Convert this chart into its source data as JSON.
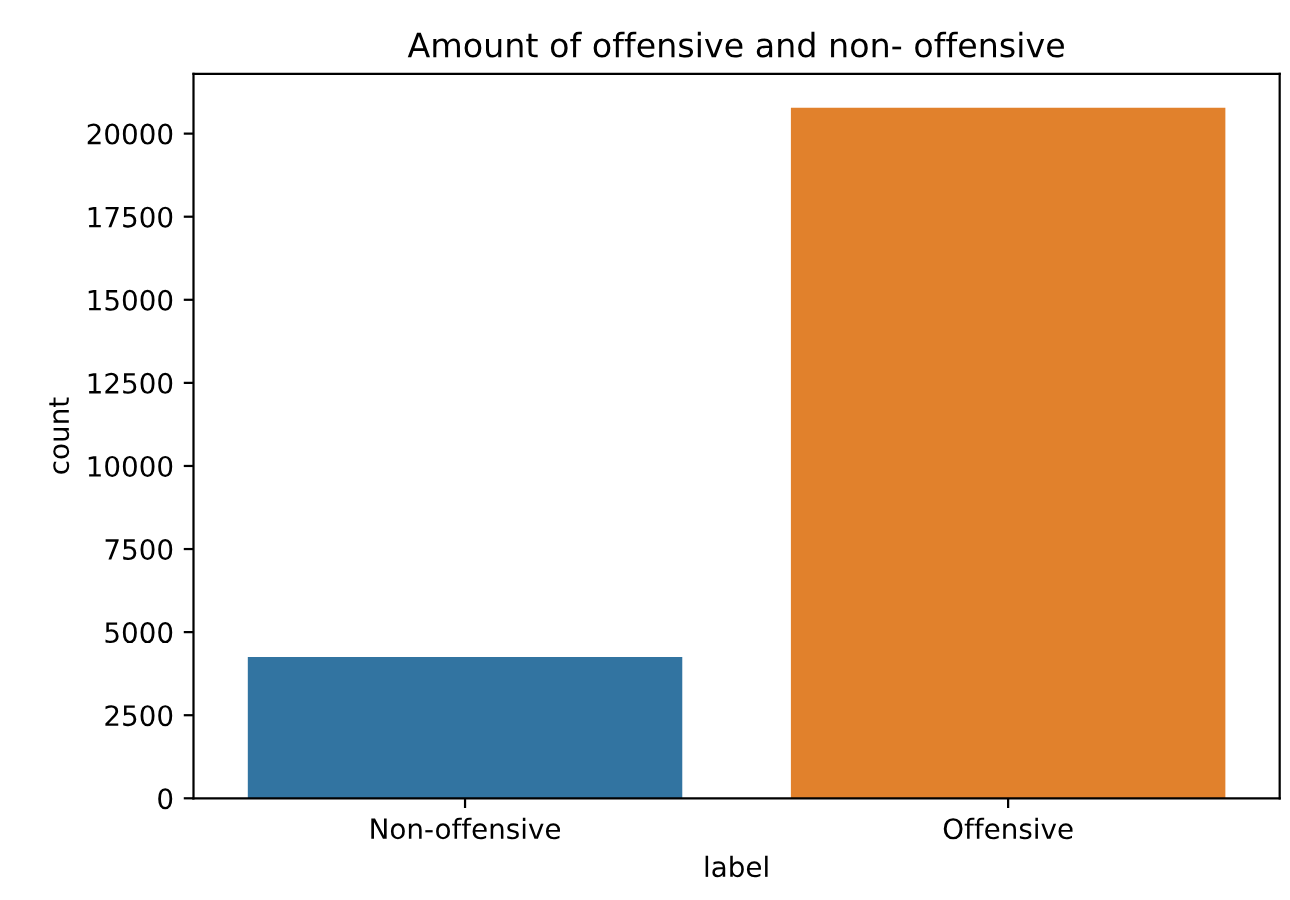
{
  "chart_data": {
    "type": "bar",
    "title": "Amount of offensive and non- offensive",
    "xlabel": "label",
    "ylabel": "count",
    "categories": [
      "Non-offensive",
      "Offensive"
    ],
    "values": [
      4250,
      20780
    ],
    "colors": [
      "#3274a1",
      "#e1812c"
    ],
    "ylim": [
      0,
      21800
    ],
    "yticks": [
      0,
      2500,
      5000,
      7500,
      10000,
      12500,
      15000,
      17500,
      20000
    ],
    "grid": false,
    "legend": false
  }
}
